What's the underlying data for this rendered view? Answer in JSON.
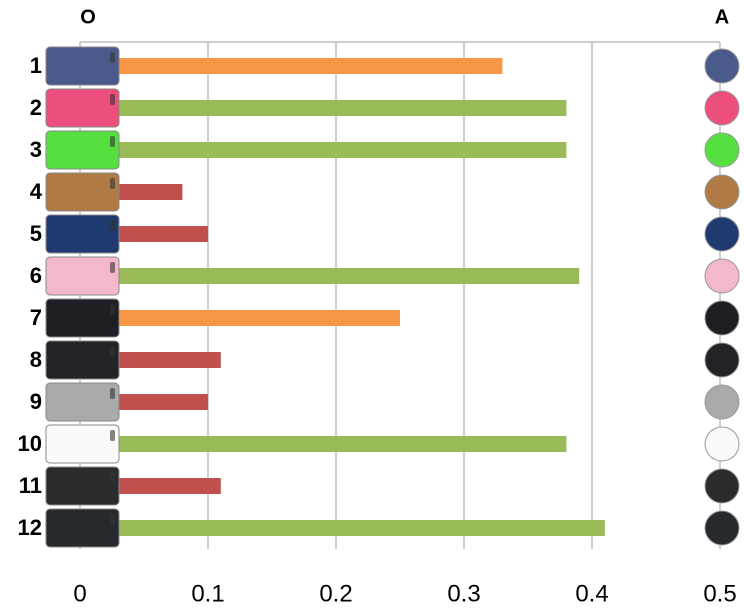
{
  "chart_data": {
    "type": "bar",
    "orientation": "horizontal",
    "column_labels": [
      "O",
      "A"
    ],
    "categories": [
      "1",
      "2",
      "3",
      "4",
      "5",
      "6",
      "7",
      "8",
      "9",
      "10",
      "11",
      "12"
    ],
    "values": [
      0.33,
      0.38,
      0.38,
      0.08,
      0.1,
      0.39,
      0.25,
      0.11,
      0.1,
      0.38,
      0.11,
      0.41
    ],
    "colors": [
      "#f79646",
      "#9bbb59",
      "#9bbb59",
      "#c0504d",
      "#c0504d",
      "#9bbb59",
      "#f79646",
      "#c0504d",
      "#c0504d",
      "#9bbb59",
      "#c0504d",
      "#9bbb59"
    ],
    "case_colors": [
      "#4a5a8a",
      "#ec4f7c",
      "#55e040",
      "#b07a45",
      "#1f3a6e",
      "#f4b8cc",
      "#1e1f24",
      "#222326",
      "#a8aba8",
      "#fafafa",
      "#2a2b2d",
      "#26292e"
    ],
    "xlim": [
      0,
      0.5
    ],
    "xticks": [
      0,
      0.1,
      0.2,
      0.3,
      0.4,
      0.5
    ],
    "grid": true
  }
}
